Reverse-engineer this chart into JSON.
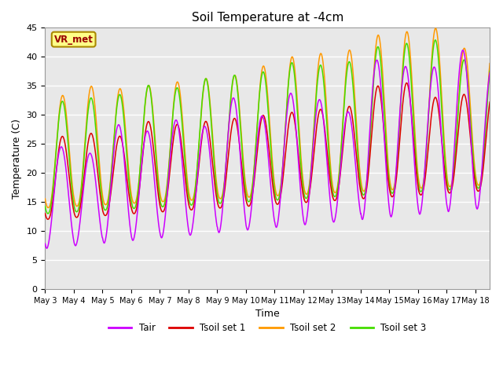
{
  "title": "Soil Temperature at -4cm",
  "xlabel": "Time",
  "ylabel": "Temperature (C)",
  "ylim": [
    0,
    45
  ],
  "background_color": "#ffffff",
  "plot_bg_color": "#e8e8e8",
  "grid_color": "#ffffff",
  "legend_entries": [
    "Tair",
    "Tsoil set 1",
    "Tsoil set 2",
    "Tsoil set 3"
  ],
  "line_colors": {
    "Tair": "#cc00ff",
    "Tsoil1": "#dd0000",
    "Tsoil2": "#ff9900",
    "Tsoil3": "#44dd00"
  },
  "annotation_text": "VR_met",
  "annotation_color": "#990000",
  "annotation_bg": "#ffff88",
  "x_tick_labels": [
    "May 3",
    "May 4",
    "May 5",
    "May 6",
    "May 7",
    "May 8",
    "May 9",
    "May 10",
    "May 11",
    "May 12",
    "May 13",
    "May 14",
    "May 15",
    "May 16",
    "May 17",
    "May 18"
  ],
  "y_ticks": [
    0,
    5,
    10,
    15,
    20,
    25,
    30,
    35,
    40,
    45
  ],
  "title_fontsize": 11,
  "tick_fontsize": 8,
  "x_tick_fontsize": 7
}
